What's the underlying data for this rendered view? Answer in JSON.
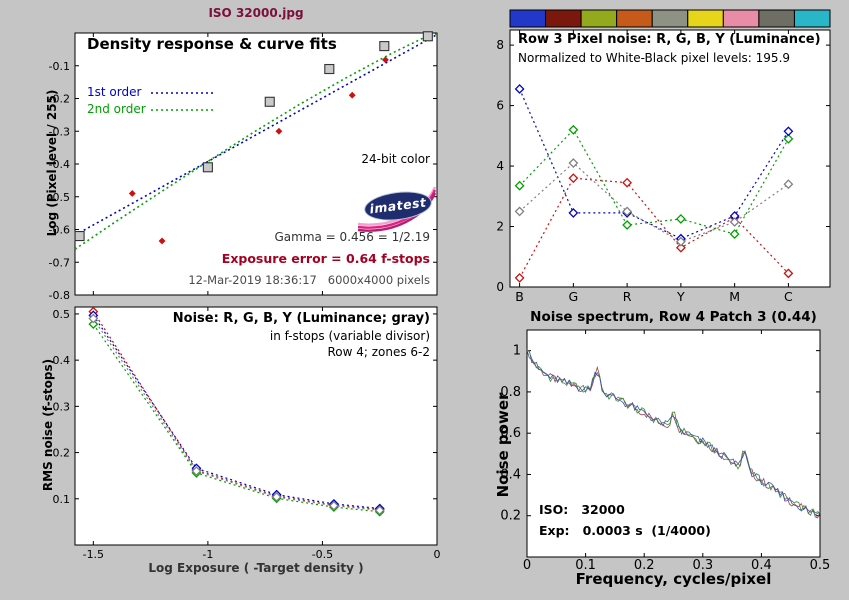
{
  "app": {
    "title": "ISO 32000.jpg"
  },
  "logo": {
    "text": "imatest"
  },
  "colors": {
    "window_background": "#c5c5c5",
    "panel_background": "#ffffff",
    "main_title": "#7a1038",
    "error_red": "#a50022",
    "series_red": "#cc1111",
    "series_green": "#00a000",
    "series_blue": "#0000cc",
    "series_gray": "#808080"
  },
  "chart_data": [
    {
      "id": "density_response",
      "type": "scatter",
      "title": "Density response & curve fits",
      "ylabel": "Log (Pixel level / 255)",
      "xlim": [
        -1.58,
        0
      ],
      "ylim": [
        -0.8,
        0
      ],
      "yticks": [
        -0.1,
        -0.2,
        -0.3,
        -0.4,
        -0.5,
        -0.6,
        -0.7,
        -0.8
      ],
      "xticks": [
        -1.5,
        -1,
        -0.5,
        0
      ],
      "legend": [
        {
          "label": "1st order",
          "color": "#0000cc"
        },
        {
          "label": "2nd order",
          "color": "#00a000"
        }
      ],
      "annotations": {
        "color_note": "24-bit color",
        "gamma": "Gamma = 0.456 = 1/2.19",
        "exposure_error": "Exposure error = 0.64 f-stops",
        "timestamp": "12-Mar-2019 18:36:17   6000x4000 pixels"
      },
      "squares": [
        [
          -1.56,
          -0.62
        ],
        [
          -1.0,
          -0.41
        ],
        [
          -0.73,
          -0.21
        ],
        [
          -0.47,
          -0.11
        ],
        [
          -0.23,
          -0.04
        ],
        [
          -0.04,
          -0.01
        ]
      ],
      "red_points": [
        [
          -1.33,
          -0.49
        ],
        [
          -1.2,
          -0.635
        ],
        [
          -0.69,
          -0.3
        ],
        [
          -0.37,
          -0.19
        ],
        [
          -0.225,
          -0.082
        ]
      ],
      "fit_1st_order": [
        [
          -1.58,
          -0.617
        ],
        [
          0,
          -0.005
        ]
      ],
      "fit_2nd_order": [
        [
          -1.58,
          -0.66
        ],
        [
          -1.4,
          -0.575
        ],
        [
          -1.2,
          -0.483
        ],
        [
          -1.0,
          -0.392
        ],
        [
          -0.8,
          -0.303
        ],
        [
          -0.6,
          -0.218
        ],
        [
          -0.4,
          -0.138
        ],
        [
          -0.2,
          -0.063
        ],
        [
          -0.05,
          -0.012
        ],
        [
          0,
          -0.002
        ]
      ]
    },
    {
      "id": "rms_noise",
      "type": "line",
      "title": "Noise: R, G, B, Y (Luminance; gray)",
      "subtitle1": "in f-stops (variable divisor)",
      "subtitle2": "Row 4; zones 6-2",
      "xlabel": "Log Exposure ( -Target density )",
      "ylabel": "RMS noise (f-stops)",
      "xlim": [
        -1.58,
        0
      ],
      "ylim": [
        0,
        0.515
      ],
      "yticks": [
        0.1,
        0.2,
        0.3,
        0.4,
        0.5
      ],
      "xticks": [
        -1.5,
        -1,
        -0.5,
        0
      ],
      "x": [
        -1.5,
        -1.05,
        -0.7,
        -0.45,
        -0.25
      ],
      "series": [
        {
          "name": "R",
          "color": "#cc1111",
          "values": [
            0.505,
            0.162,
            0.106,
            0.086,
            0.077
          ]
        },
        {
          "name": "G",
          "color": "#00a000",
          "values": [
            0.478,
            0.156,
            0.101,
            0.082,
            0.072
          ]
        },
        {
          "name": "B",
          "color": "#0000cc",
          "values": [
            0.497,
            0.166,
            0.109,
            0.089,
            0.079
          ]
        },
        {
          "name": "Y",
          "color": "#808080",
          "values": [
            0.49,
            0.16,
            0.104,
            0.085,
            0.075
          ]
        }
      ]
    },
    {
      "id": "row3_pixel_noise",
      "type": "line",
      "title": "Row 3 Pixel noise: R, G, B, Y (Luminance)",
      "subtitle": "Normalized to White-Black pixel levels: 195.9",
      "categories": [
        "B",
        "G",
        "R",
        "Y",
        "M",
        "C"
      ],
      "ylim": [
        0,
        8.5
      ],
      "yticks": [
        0,
        2,
        4,
        6,
        8
      ],
      "series": [
        {
          "name": "R",
          "color": "#cc1111",
          "values": [
            0.3,
            3.6,
            3.45,
            1.3,
            2.3,
            0.45
          ]
        },
        {
          "name": "G",
          "color": "#00a000",
          "values": [
            3.35,
            5.2,
            2.05,
            2.25,
            1.75,
            4.9
          ]
        },
        {
          "name": "B",
          "color": "#0000cc",
          "values": [
            6.55,
            2.45,
            2.45,
            1.6,
            2.35,
            5.15
          ]
        },
        {
          "name": "Y",
          "color": "#808080",
          "values": [
            2.5,
            4.1,
            2.5,
            1.5,
            2.15,
            3.4
          ]
        }
      ],
      "swatch_colors": [
        "#2238c8",
        "#7a180e",
        "#94aa1e",
        "#c55a1a",
        "#8e9284",
        "#e6d51a",
        "#e88ca8",
        "#6e6e64",
        "#28b6c8"
      ]
    },
    {
      "id": "noise_spectrum",
      "type": "line",
      "title": "Noise spectrum, Row 4 Patch 3 (0.44)",
      "xlabel": "Frequency, cycles/pixel",
      "ylabel": "Noise power",
      "annotations": {
        "iso": "ISO:   32000",
        "exp": "Exp:   0.0003 s  (1/4000)"
      },
      "xlim": [
        0,
        0.5
      ],
      "ylim": [
        0,
        1.1
      ],
      "xticks": [
        0,
        0.1,
        0.2,
        0.3,
        0.4,
        0.5
      ],
      "yticks": [
        0.2,
        0.4,
        0.6,
        0.8,
        1
      ],
      "series_colors": {
        "R": "#a04050",
        "G": "#309030",
        "B": "#4050b0"
      },
      "base_curve": [
        [
          0,
          1.02
        ],
        [
          0.003,
          0.99
        ],
        [
          0.006,
          0.97
        ],
        [
          0.01,
          0.95
        ],
        [
          0.02,
          0.91
        ],
        [
          0.03,
          0.89
        ],
        [
          0.04,
          0.87
        ],
        [
          0.05,
          0.86
        ],
        [
          0.06,
          0.85
        ],
        [
          0.07,
          0.84
        ],
        [
          0.08,
          0.83
        ],
        [
          0.09,
          0.82
        ],
        [
          0.1,
          0.81
        ],
        [
          0.11,
          0.83
        ],
        [
          0.115,
          0.88
        ],
        [
          0.12,
          0.9
        ],
        [
          0.125,
          0.86
        ],
        [
          0.13,
          0.8
        ],
        [
          0.14,
          0.78
        ],
        [
          0.15,
          0.77
        ],
        [
          0.16,
          0.76
        ],
        [
          0.17,
          0.74
        ],
        [
          0.18,
          0.73
        ],
        [
          0.19,
          0.71
        ],
        [
          0.2,
          0.7
        ],
        [
          0.21,
          0.68
        ],
        [
          0.22,
          0.66
        ],
        [
          0.23,
          0.65
        ],
        [
          0.24,
          0.64
        ],
        [
          0.245,
          0.66
        ],
        [
          0.25,
          0.7
        ],
        [
          0.255,
          0.66
        ],
        [
          0.26,
          0.62
        ],
        [
          0.27,
          0.6
        ],
        [
          0.28,
          0.59
        ],
        [
          0.29,
          0.57
        ],
        [
          0.3,
          0.56
        ],
        [
          0.31,
          0.54
        ],
        [
          0.32,
          0.52
        ],
        [
          0.33,
          0.5
        ],
        [
          0.34,
          0.48
        ],
        [
          0.35,
          0.46
        ],
        [
          0.36,
          0.44
        ],
        [
          0.365,
          0.46
        ],
        [
          0.37,
          0.52
        ],
        [
          0.375,
          0.48
        ],
        [
          0.38,
          0.42
        ],
        [
          0.39,
          0.39
        ],
        [
          0.4,
          0.37
        ],
        [
          0.41,
          0.35
        ],
        [
          0.42,
          0.33
        ],
        [
          0.43,
          0.31
        ],
        [
          0.44,
          0.29
        ],
        [
          0.45,
          0.27
        ],
        [
          0.46,
          0.25
        ],
        [
          0.47,
          0.24
        ],
        [
          0.48,
          0.22
        ],
        [
          0.49,
          0.21
        ],
        [
          0.5,
          0.21
        ]
      ]
    }
  ]
}
